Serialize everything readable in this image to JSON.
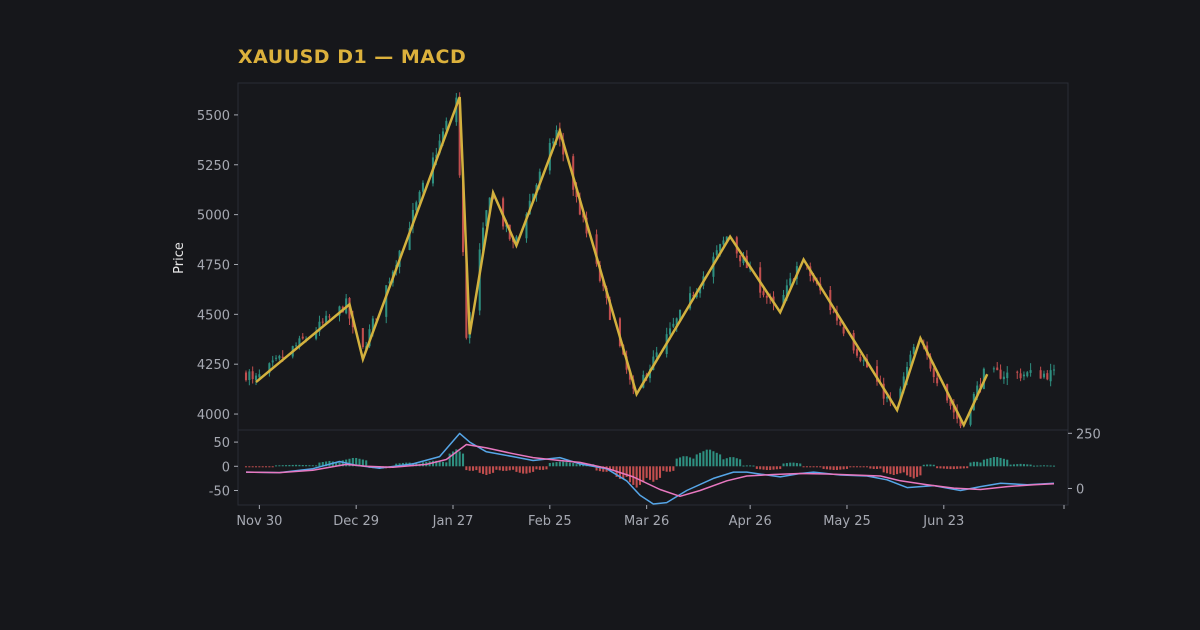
{
  "colors": {
    "background": "#16171b",
    "panel": "#17181c",
    "frame": "#2a2d36",
    "title": "#dcb13c",
    "tick_text": "#a6a9b2",
    "up_candle": "#2e8f80",
    "down_candle": "#c24e4e",
    "zigzag": "#d3b13e",
    "macd_line": "#56a6e8",
    "signal_line": "#e878c0",
    "hist_up": "#2e8f80",
    "hist_down": "#c24e4e"
  },
  "chart_data": {
    "type": "candlestick",
    "title": "XAUUSD D1 — MACD",
    "price_panel": {
      "ylabel": "Price",
      "ylim": [
        3920,
        5660
      ],
      "yticks": [
        4000,
        4250,
        4500,
        4750,
        5000,
        5250,
        5500
      ]
    },
    "macd_panel": {
      "ylim": [
        -80,
        75
      ],
      "yticks": [
        -50,
        0,
        50
      ],
      "right_yticks": [
        0,
        250
      ],
      "right_ylim": [
        -75,
        265
      ]
    },
    "x_axis": {
      "start_date": "Nov 26",
      "end_date": "Aug 1",
      "tick_labels": [
        "Nov 30",
        "Dec 29",
        "Jan 27",
        "Feb 25",
        "Mar 26",
        "Apr 26",
        "May 25",
        "Jun 23"
      ],
      "tick_day_index": [
        4,
        33,
        62,
        91,
        120,
        151,
        180,
        209
      ]
    },
    "zigzag": [
      {
        "day": 3,
        "price": 4160
      },
      {
        "day": 31,
        "price": 4550
      },
      {
        "day": 35,
        "price": 4275
      },
      {
        "day": 64,
        "price": 5590
      },
      {
        "day": 67,
        "price": 4400
      },
      {
        "day": 74,
        "price": 5110
      },
      {
        "day": 81,
        "price": 4845
      },
      {
        "day": 94,
        "price": 5420
      },
      {
        "day": 117,
        "price": 4100
      },
      {
        "day": 145,
        "price": 4890
      },
      {
        "day": 160,
        "price": 4510
      },
      {
        "day": 167,
        "price": 4775
      },
      {
        "day": 195,
        "price": 4020
      },
      {
        "day": 202,
        "price": 4380
      },
      {
        "day": 215,
        "price": 3945
      },
      {
        "day": 222,
        "price": 4200
      }
    ],
    "candles_end_day": 242,
    "macd_series": [
      {
        "name": "MACD",
        "points": [
          [
            0,
            -12
          ],
          [
            10,
            -13
          ],
          [
            20,
            -5
          ],
          [
            28,
            10
          ],
          [
            33,
            2
          ],
          [
            40,
            -4
          ],
          [
            50,
            5
          ],
          [
            58,
            20
          ],
          [
            62,
            52
          ],
          [
            64,
            68
          ],
          [
            67,
            50
          ],
          [
            72,
            30
          ],
          [
            80,
            20
          ],
          [
            86,
            12
          ],
          [
            94,
            18
          ],
          [
            100,
            5
          ],
          [
            108,
            -5
          ],
          [
            114,
            -30
          ],
          [
            118,
            -60
          ],
          [
            122,
            -78
          ],
          [
            126,
            -75
          ],
          [
            132,
            -50
          ],
          [
            140,
            -25
          ],
          [
            146,
            -12
          ],
          [
            150,
            -12
          ],
          [
            156,
            -18
          ],
          [
            160,
            -22
          ],
          [
            166,
            -15
          ],
          [
            170,
            -12
          ],
          [
            178,
            -18
          ],
          [
            186,
            -20
          ],
          [
            192,
            -28
          ],
          [
            198,
            -44
          ],
          [
            206,
            -40
          ],
          [
            214,
            -50
          ],
          [
            220,
            -42
          ],
          [
            226,
            -35
          ],
          [
            234,
            -38
          ],
          [
            242,
            -35
          ]
        ]
      },
      {
        "name": "Signal",
        "points": [
          [
            0,
            -12
          ],
          [
            10,
            -13
          ],
          [
            20,
            -8
          ],
          [
            30,
            4
          ],
          [
            36,
            0
          ],
          [
            44,
            -2
          ],
          [
            54,
            4
          ],
          [
            60,
            14
          ],
          [
            66,
            45
          ],
          [
            72,
            38
          ],
          [
            80,
            26
          ],
          [
            86,
            18
          ],
          [
            94,
            12
          ],
          [
            100,
            8
          ],
          [
            108,
            -4
          ],
          [
            116,
            -22
          ],
          [
            124,
            -48
          ],
          [
            130,
            -62
          ],
          [
            136,
            -50
          ],
          [
            144,
            -30
          ],
          [
            150,
            -20
          ],
          [
            158,
            -17
          ],
          [
            166,
            -15
          ],
          [
            174,
            -16
          ],
          [
            182,
            -18
          ],
          [
            190,
            -20
          ],
          [
            196,
            -30
          ],
          [
            204,
            -38
          ],
          [
            212,
            -45
          ],
          [
            220,
            -48
          ],
          [
            228,
            -42
          ],
          [
            236,
            -38
          ],
          [
            242,
            -36
          ]
        ]
      }
    ],
    "histogram_bars": [
      {
        "from": 0,
        "to": 8,
        "value": -2
      },
      {
        "from": 9,
        "to": 21,
        "value": 3
      },
      {
        "from": 22,
        "to": 28,
        "value": 11
      },
      {
        "from": 29,
        "to": 36,
        "value": 18
      },
      {
        "from": 37,
        "to": 44,
        "value": -5
      },
      {
        "from": 45,
        "to": 52,
        "value": 8
      },
      {
        "from": 53,
        "to": 60,
        "value": 12
      },
      {
        "from": 61,
        "to": 65,
        "value": 35
      },
      {
        "from": 66,
        "to": 69,
        "value": -10
      },
      {
        "from": 70,
        "to": 74,
        "value": -18
      },
      {
        "from": 75,
        "to": 80,
        "value": -10
      },
      {
        "from": 81,
        "to": 86,
        "value": -16
      },
      {
        "from": 87,
        "to": 90,
        "value": -8
      },
      {
        "from": 91,
        "to": 98,
        "value": 10
      },
      {
        "from": 99,
        "to": 104,
        "value": 6
      },
      {
        "from": 105,
        "to": 110,
        "value": -12
      },
      {
        "from": 111,
        "to": 114,
        "value": -28
      },
      {
        "from": 115,
        "to": 119,
        "value": -44
      },
      {
        "from": 120,
        "to": 124,
        "value": -32
      },
      {
        "from": 125,
        "to": 128,
        "value": -12
      },
      {
        "from": 129,
        "to": 134,
        "value": 22
      },
      {
        "from": 135,
        "to": 142,
        "value": 36
      },
      {
        "from": 143,
        "to": 148,
        "value": 20
      },
      {
        "from": 149,
        "to": 152,
        "value": 2
      },
      {
        "from": 153,
        "to": 160,
        "value": -8
      },
      {
        "from": 161,
        "to": 166,
        "value": 8
      },
      {
        "from": 167,
        "to": 172,
        "value": -2
      },
      {
        "from": 173,
        "to": 180,
        "value": -8
      },
      {
        "from": 181,
        "to": 186,
        "value": -2
      },
      {
        "from": 187,
        "to": 190,
        "value": -6
      },
      {
        "from": 191,
        "to": 197,
        "value": -18
      },
      {
        "from": 198,
        "to": 202,
        "value": -25
      },
      {
        "from": 203,
        "to": 206,
        "value": 4
      },
      {
        "from": 207,
        "to": 216,
        "value": -6
      },
      {
        "from": 217,
        "to": 220,
        "value": 10
      },
      {
        "from": 221,
        "to": 228,
        "value": 20
      },
      {
        "from": 229,
        "to": 235,
        "value": 5
      },
      {
        "from": 236,
        "to": 242,
        "value": 2
      }
    ]
  }
}
